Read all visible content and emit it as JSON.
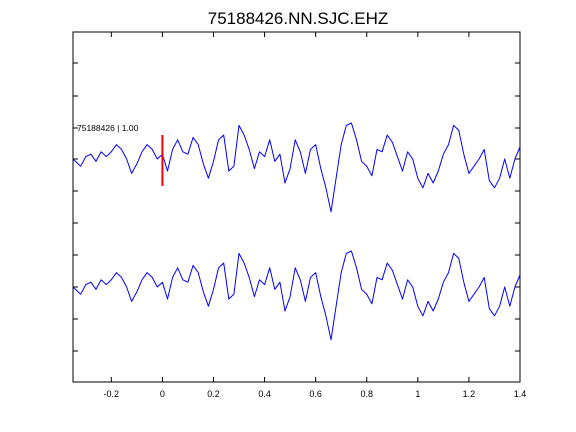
{
  "chart_data": {
    "type": "line",
    "title": "75188426.NN.SJC.EHZ",
    "xlabel": "",
    "ylabel": "",
    "xlim": [
      -0.35,
      1.4
    ],
    "x_ticks": [
      -0.2,
      0,
      0.2,
      0.4,
      0.6,
      0.8,
      1,
      1.2,
      1.4
    ],
    "x_tick_labels": [
      "-0.2",
      "0",
      "0.2",
      "0.4",
      "0.6",
      "0.8",
      "1",
      "1.2",
      "1.4"
    ],
    "y_tick_labels_visible": false,
    "grid": false,
    "line_color": "#0000ff",
    "marker_color": "#ff0000",
    "annotation": {
      "text": "75188426 | 1.00",
      "x": -0.35
    },
    "pick_marker": {
      "x": 0.0
    },
    "sample_x": [
      -0.35,
      -0.32,
      -0.3,
      -0.28,
      -0.26,
      -0.24,
      -0.22,
      -0.2,
      -0.18,
      -0.16,
      -0.14,
      -0.12,
      -0.1,
      -0.08,
      -0.06,
      -0.04,
      -0.02,
      0.0,
      0.02,
      0.04,
      0.06,
      0.08,
      0.1,
      0.12,
      0.14,
      0.16,
      0.18,
      0.2,
      0.22,
      0.24,
      0.26,
      0.28,
      0.3,
      0.32,
      0.34,
      0.36,
      0.38,
      0.4,
      0.42,
      0.44,
      0.46,
      0.48,
      0.5,
      0.52,
      0.54,
      0.56,
      0.58,
      0.6,
      0.62,
      0.64,
      0.66,
      0.68,
      0.7,
      0.72,
      0.74,
      0.76,
      0.78,
      0.8,
      0.82,
      0.84,
      0.86,
      0.88,
      0.9,
      0.92,
      0.94,
      0.96,
      0.98,
      1.0,
      1.02,
      1.04,
      1.06,
      1.08,
      1.1,
      1.12,
      1.14,
      1.16,
      1.18,
      1.2,
      1.22,
      1.24,
      1.26,
      1.28,
      1.3,
      1.32,
      1.34,
      1.36,
      1.38,
      1.4
    ],
    "series": [
      {
        "values": [
          0.0,
          -0.3,
          0.1,
          0.2,
          -0.1,
          0.3,
          0.1,
          0.3,
          0.6,
          0.4,
          0.0,
          -0.6,
          -0.2,
          0.3,
          0.6,
          0.4,
          0.0,
          0.2,
          -0.5,
          0.4,
          0.8,
          0.3,
          0.2,
          0.9,
          0.6,
          -0.2,
          -0.8,
          -0.1,
          0.8,
          1.0,
          -0.5,
          -0.3,
          1.4,
          1.0,
          0.4,
          -0.4,
          0.3,
          0.1,
          0.8,
          -0.1,
          0.2,
          -1.0,
          -0.4,
          0.8,
          0.3,
          -0.6,
          0.4,
          0.6,
          -0.4,
          -1.2,
          -2.2,
          -0.8,
          0.6,
          1.4,
          1.5,
          0.8,
          -0.1,
          -0.3,
          -0.7,
          0.4,
          0.3,
          1.0,
          0.7,
          0.1,
          -0.5,
          0.3,
          0.0,
          -0.8,
          -1.2,
          -0.6,
          -1.0,
          -0.5,
          0.2,
          0.6,
          1.4,
          1.2,
          0.2,
          -0.6,
          -0.3,
          0.0,
          0.4,
          -0.9,
          -1.2,
          -0.8,
          0.0,
          -0.8,
          0.0,
          0.5
        ]
      },
      {
        "values": [
          0.0,
          -0.3,
          0.1,
          0.2,
          -0.1,
          0.3,
          0.1,
          0.3,
          0.6,
          0.4,
          0.0,
          -0.6,
          -0.2,
          0.3,
          0.6,
          0.4,
          0.0,
          0.2,
          -0.5,
          0.4,
          0.8,
          0.3,
          0.2,
          0.9,
          0.6,
          -0.2,
          -0.8,
          -0.1,
          0.8,
          1.0,
          -0.5,
          -0.3,
          1.4,
          1.0,
          0.4,
          -0.4,
          0.3,
          0.1,
          0.8,
          -0.1,
          0.2,
          -1.0,
          -0.4,
          0.8,
          0.3,
          -0.6,
          0.4,
          0.6,
          -0.4,
          -1.2,
          -2.2,
          -0.8,
          0.6,
          1.4,
          1.5,
          0.8,
          -0.1,
          -0.3,
          -0.7,
          0.4,
          0.3,
          1.0,
          0.7,
          0.1,
          -0.5,
          0.3,
          0.0,
          -0.8,
          -1.2,
          -0.6,
          -1.0,
          -0.5,
          0.2,
          0.6,
          1.4,
          1.2,
          0.2,
          -0.6,
          -0.3,
          0.0,
          0.4,
          -0.9,
          -1.2,
          -0.8,
          0.0,
          -0.8,
          0.0,
          0.5
        ]
      }
    ]
  }
}
